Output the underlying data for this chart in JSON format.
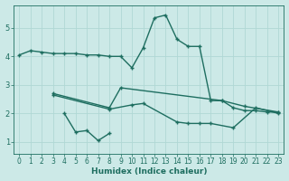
{
  "xlabel": "Humidex (Indice chaleur)",
  "background_color": "#cce9e7",
  "grid_color": "#b0d8d5",
  "line_color": "#1e6e60",
  "x_values": [
    0,
    1,
    2,
    3,
    4,
    5,
    6,
    7,
    8,
    9,
    10,
    11,
    12,
    13,
    14,
    15,
    16,
    17,
    18,
    19,
    20,
    21,
    22,
    23
  ],
  "line1": [
    4.05,
    4.2,
    4.15,
    4.1,
    4.1,
    4.1,
    4.05,
    4.05,
    4.0,
    4.0,
    3.6,
    4.3,
    5.35,
    5.45,
    4.6,
    4.35,
    4.35,
    2.45,
    2.45,
    2.2,
    2.1,
    2.1,
    2.05,
    2.05
  ],
  "line2_x": [
    3,
    8,
    9,
    18,
    20,
    23
  ],
  "line2_y": [
    2.7,
    2.2,
    2.9,
    2.45,
    2.25,
    2.05
  ],
  "line3_x": [
    4,
    5,
    6,
    7,
    8
  ],
  "line3_y": [
    2.0,
    1.35,
    1.4,
    1.05,
    1.3
  ],
  "line4_x": [
    3,
    8,
    10,
    11,
    14,
    15,
    16,
    17,
    19,
    21,
    23
  ],
  "line4_y": [
    2.65,
    2.15,
    2.3,
    2.35,
    1.7,
    1.65,
    1.65,
    1.65,
    1.5,
    2.2,
    2.0
  ],
  "ylim": [
    0.6,
    5.8
  ],
  "xlim": [
    -0.5,
    23.5
  ],
  "yticks": [
    1,
    2,
    3,
    4,
    5
  ],
  "xticks": [
    0,
    1,
    2,
    3,
    4,
    5,
    6,
    7,
    8,
    9,
    10,
    11,
    12,
    13,
    14,
    15,
    16,
    17,
    18,
    19,
    20,
    21,
    22,
    23
  ],
  "markersize": 2.5,
  "linewidth": 1.0
}
